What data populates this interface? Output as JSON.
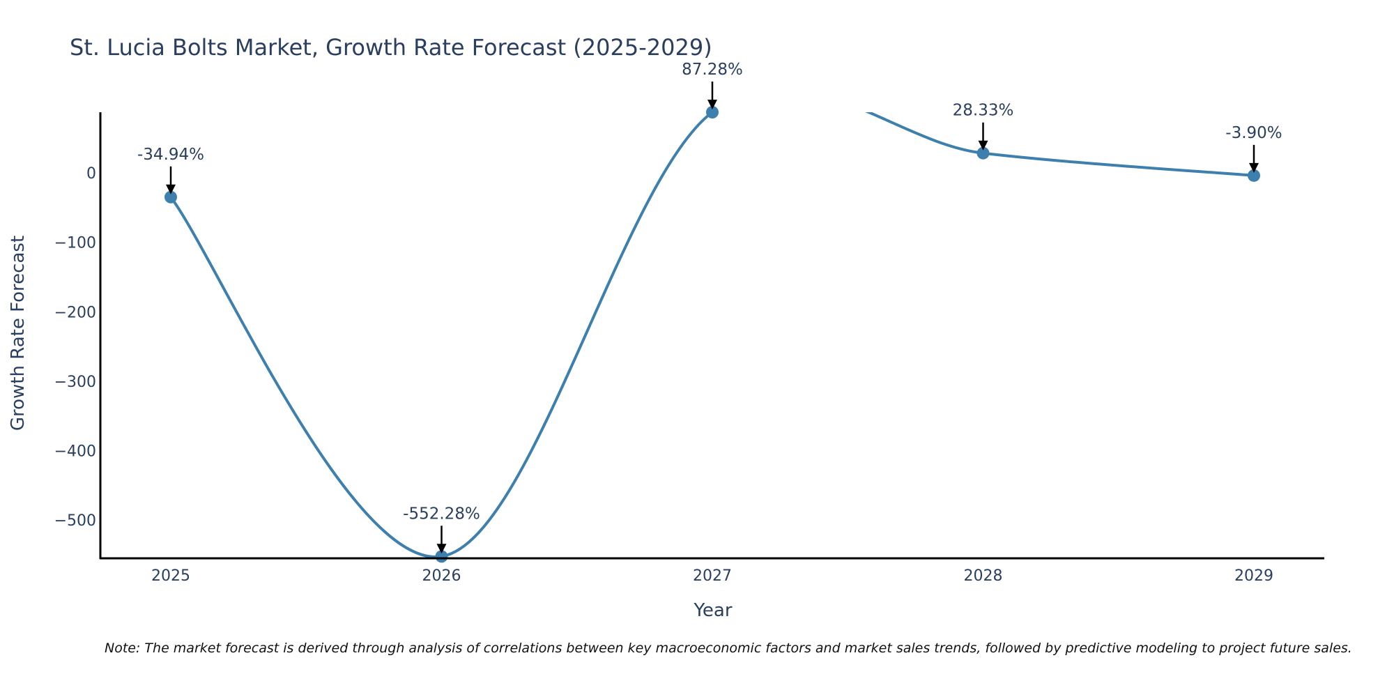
{
  "chart_data": {
    "type": "line",
    "title": "St. Lucia Bolts Market, Growth Rate Forecast (2025-2029)",
    "xlabel": "Year",
    "ylabel": "Growth Rate Forecast",
    "categories": [
      "2025",
      "2026",
      "2027",
      "2028",
      "2029"
    ],
    "values": [
      -34.94,
      -552.28,
      87.28,
      28.33,
      -3.9
    ],
    "data_labels": [
      "-34.94%",
      "-552.28%",
      "87.28%",
      "28.33%",
      "-3.90%"
    ],
    "yticks": [
      0,
      -100,
      -200,
      -300,
      -400,
      -500
    ],
    "ytick_labels": [
      "0",
      "−100",
      "−200",
      "−300",
      "−400",
      "−500"
    ],
    "ylim": [
      -555,
      87.28
    ],
    "xlim": [
      2024.74,
      2029.26
    ],
    "line_shape": "spline",
    "grid": false,
    "colors": {
      "line": "#3d7fad",
      "marker": "#3d7fad",
      "axis": "#000000",
      "text": "#2a3f5f",
      "arrow": "#000000"
    }
  },
  "note": "Note: The market forecast is derived through analysis of correlations between key macroeconomic factors and market sales trends, followed by predictive modeling to project future sales."
}
